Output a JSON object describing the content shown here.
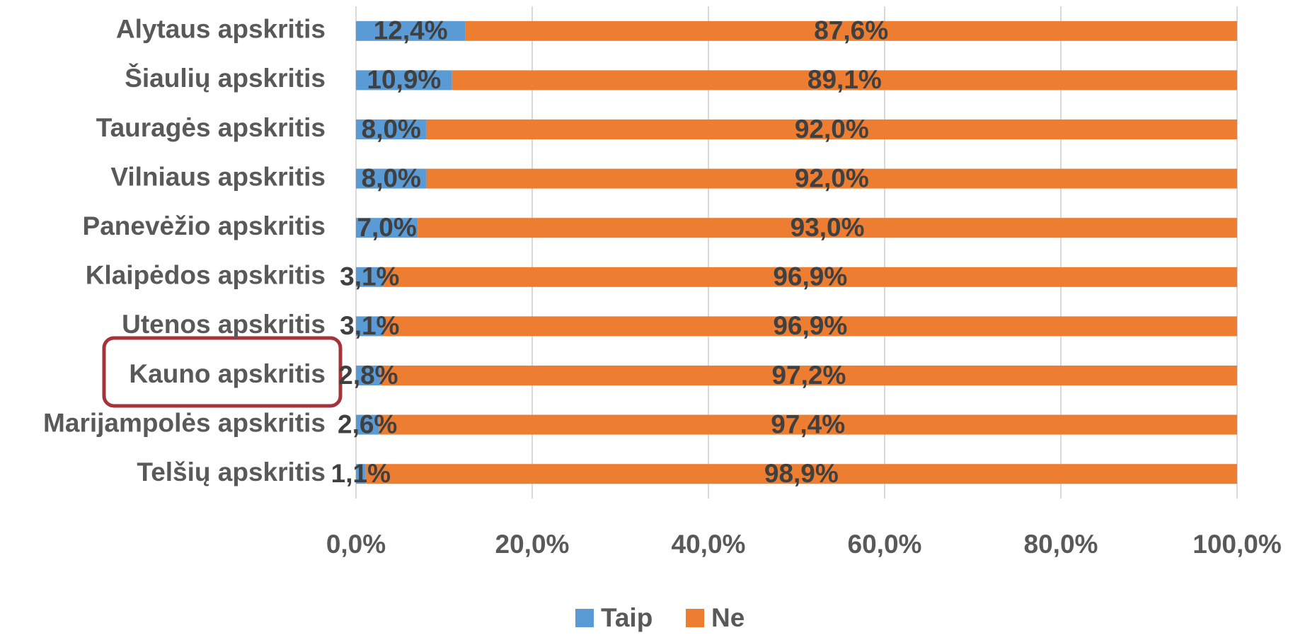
{
  "chart_data": {
    "type": "stacked_bar_horizontal",
    "categories": [
      "Alytaus apskritis",
      "Šiaulių apskritis",
      "Tauragės apskritis",
      "Vilniaus apskritis",
      "Panevėžio apskritis",
      "Klaipėdos apskritis",
      "Utenos apskritis",
      "Kauno apskritis",
      "Marijampolės apskritis",
      "Telšių apskritis"
    ],
    "series": [
      {
        "name": "Taip",
        "color": "#5b9bd5",
        "values": [
          12.4,
          10.9,
          8.0,
          8.0,
          7.0,
          3.1,
          3.1,
          2.8,
          2.6,
          1.1
        ],
        "value_labels": [
          "12,4%",
          "10,9%",
          "8,0%",
          "8,0%",
          "7,0%",
          "3,1%",
          "3,1%",
          "2,8%",
          "2,6%",
          "1,1%"
        ]
      },
      {
        "name": "Ne",
        "color": "#ed7d31",
        "values": [
          87.6,
          89.1,
          92.0,
          92.0,
          93.0,
          96.9,
          96.9,
          97.2,
          97.4,
          98.9
        ],
        "value_labels": [
          "87,6%",
          "89,1%",
          "92,0%",
          "92,0%",
          "93,0%",
          "96,9%",
          "96,9%",
          "97,2%",
          "97,4%",
          "98,9%"
        ]
      }
    ],
    "xlim": [
      0,
      100
    ],
    "xticks": [
      {
        "value": 0,
        "label": "0,0%"
      },
      {
        "value": 20,
        "label": "20,0%"
      },
      {
        "value": 40,
        "label": "40,0%"
      },
      {
        "value": 60,
        "label": "60,0%"
      },
      {
        "value": 80,
        "label": "80,0%"
      },
      {
        "value": 100,
        "label": "100,0%"
      }
    ],
    "grid": true,
    "legend": "bottom"
  }
}
